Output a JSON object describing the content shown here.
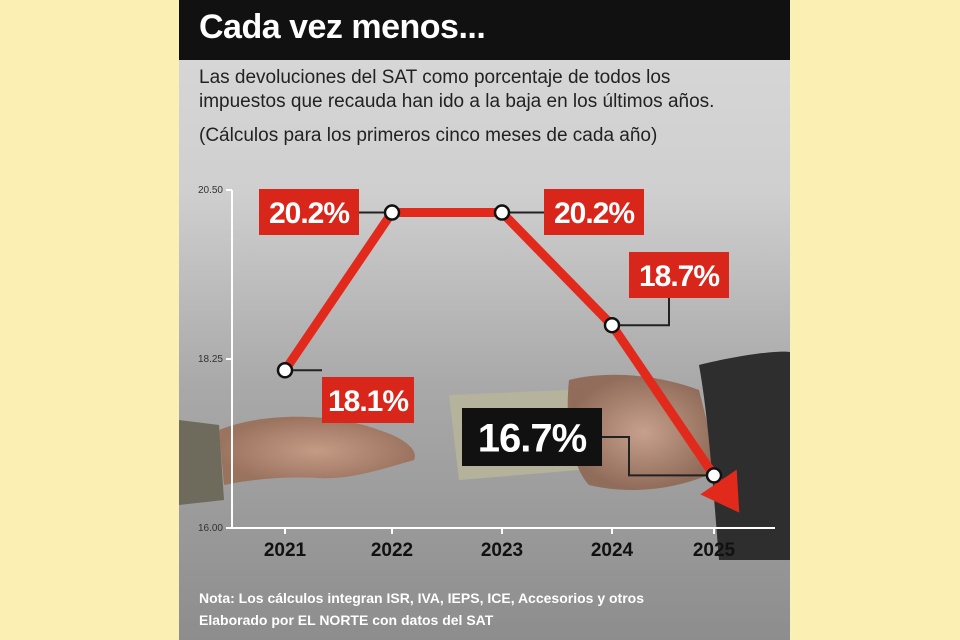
{
  "header": {
    "title": "Cada vez menos...",
    "subtitle_line1": "Las devoluciones del SAT como porcentaje de todos los",
    "subtitle_line2": "impuestos que recauda han ido a la baja en los últimos años.",
    "subtitle_line3": "(Cálculos para los primeros cinco meses de cada año)"
  },
  "footer": {
    "note": "Nota: Los cálculos integran ISR, IVA, IEPS, ICE, Accesorios y otros",
    "credit": "Elaborado por EL NORTE con datos del SAT"
  },
  "colors": {
    "line": "#e22a1c",
    "label_bg_red": "#d9261b",
    "label_bg_black": "#111111",
    "title_bar": "#111111"
  },
  "chart_data": {
    "type": "line",
    "x": [
      "2021",
      "2022",
      "2023",
      "2024",
      "2025"
    ],
    "series": [
      {
        "values": [
          18.1,
          20.2,
          20.2,
          18.7,
          16.7
        ]
      }
    ],
    "data_labels": [
      "18.1%",
      "20.2%",
      "20.2%",
      "18.7%",
      "16.7%"
    ],
    "ylim": [
      16.0,
      20.5
    ],
    "yticks": [
      16.0,
      18.25,
      20.5
    ],
    "ytick_labels": [
      "16.00",
      "18.25",
      "20.50"
    ],
    "xlabel": "",
    "ylabel": "",
    "grid": false,
    "legend": "none"
  }
}
